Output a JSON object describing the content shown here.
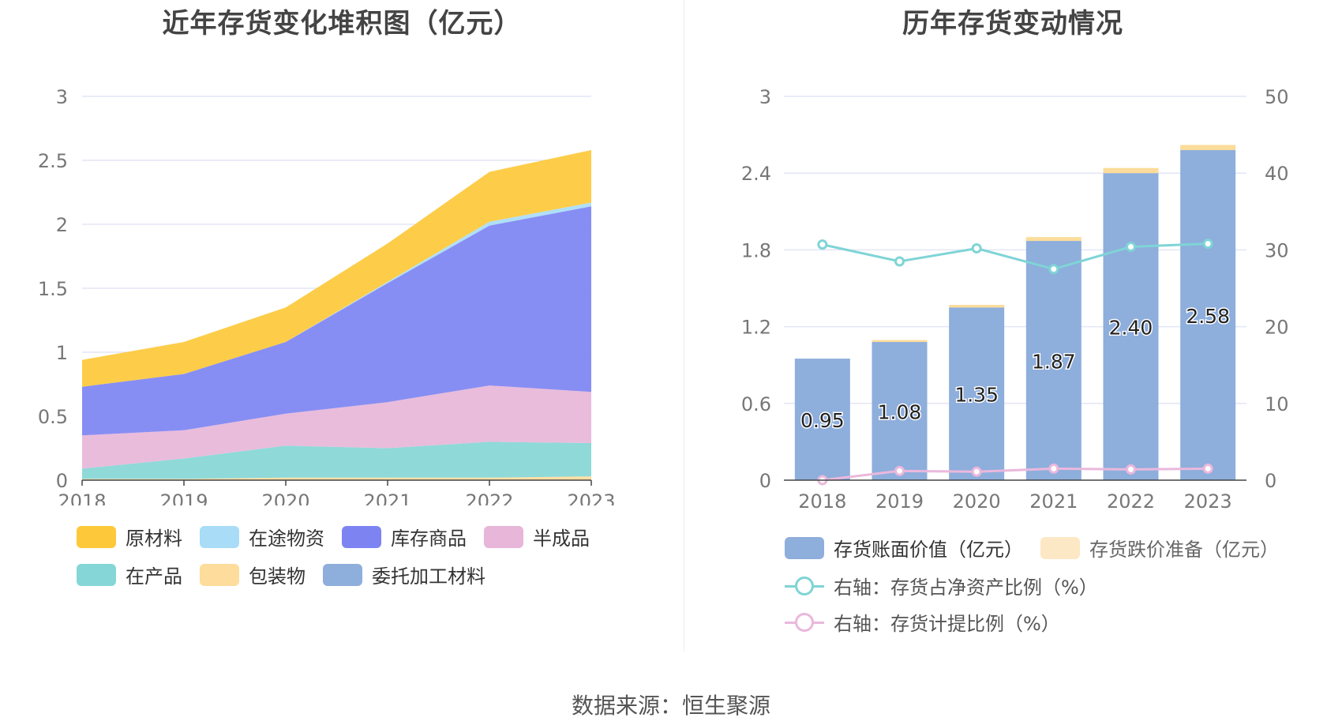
{
  "source_text": "数据来源：恒生聚源",
  "charts": {
    "left_title": "近年存货变化堆积图（亿元）",
    "right_title": "历年存货变动情况"
  },
  "left_legend": [
    {
      "label": "原材料",
      "color": "#fdc93a"
    },
    {
      "label": "在途物资",
      "color": "#a8dcf7"
    },
    {
      "label": "库存商品",
      "color": "#7d84f2"
    },
    {
      "label": "半成品",
      "color": "#e7b6d9"
    },
    {
      "label": "在产品",
      "color": "#85d6d6"
    },
    {
      "label": "包装物",
      "color": "#fddc9c"
    },
    {
      "label": "委托加工材料",
      "color": "#8eaedc"
    }
  ],
  "right_legend": [
    {
      "label": "存货账面价值（亿元）",
      "color": "#8eaedc",
      "kind": "bar"
    },
    {
      "label": "存货跌价准备（亿元）",
      "color": "#fde8c6",
      "kind": "bar"
    },
    {
      "label": "右轴：存货占净资产比例（%）",
      "color": "#7fd4d6",
      "kind": "line"
    },
    {
      "label": "右轴：存货计提比例（%）",
      "color": "#eab8dc",
      "kind": "line"
    }
  ],
  "chart_data": [
    {
      "type": "area",
      "stacked": true,
      "title": "近年存货变化堆积图（亿元）",
      "x": [
        "2018",
        "2019",
        "2020",
        "2021",
        "2022",
        "2023"
      ],
      "ylim": [
        0,
        3
      ],
      "yticks": [
        "0",
        "0.5",
        "1",
        "1.5",
        "2",
        "2.5",
        "3"
      ],
      "grid": true,
      "legend_position": "bottom",
      "series": [
        {
          "name": "包装物",
          "color": "#fddc9c",
          "values": [
            0.01,
            0.01,
            0.02,
            0.02,
            0.02,
            0.03
          ]
        },
        {
          "name": "在产品",
          "color": "#85d6d6",
          "values": [
            0.08,
            0.16,
            0.25,
            0.23,
            0.28,
            0.26
          ]
        },
        {
          "name": "半成品",
          "color": "#e7b6d9",
          "values": [
            0.26,
            0.22,
            0.25,
            0.36,
            0.44,
            0.4
          ]
        },
        {
          "name": "库存商品",
          "color": "#7d84f2",
          "values": [
            0.38,
            0.44,
            0.56,
            0.93,
            1.25,
            1.45
          ]
        },
        {
          "name": "在途物资",
          "color": "#a8dcf7",
          "values": [
            0.0,
            0.0,
            0.0,
            0.01,
            0.03,
            0.03
          ]
        },
        {
          "name": "委托加工材料",
          "color": "#8eaedc",
          "values": [
            0.0,
            0.0,
            0.0,
            0.0,
            0.0,
            0.0
          ]
        },
        {
          "name": "原材料",
          "color": "#fdc93a",
          "values": [
            0.21,
            0.25,
            0.27,
            0.3,
            0.39,
            0.41
          ]
        }
      ]
    },
    {
      "type": "bar",
      "title": "历年存货变动情况",
      "categories": [
        "2018",
        "2019",
        "2020",
        "2021",
        "2022",
        "2023"
      ],
      "ylim": [
        0,
        3
      ],
      "yticks": [
        "0",
        "0.6",
        "1.2",
        "1.8",
        "2.4",
        "3"
      ],
      "y2lim": [
        0,
        50
      ],
      "y2ticks": [
        "0",
        "10",
        "20",
        "30",
        "40",
        "50"
      ],
      "legend_position": "bottom",
      "series": [
        {
          "name": "存货账面价值（亿元）",
          "color": "#8eaedc",
          "values": [
            0.95,
            1.08,
            1.35,
            1.87,
            2.4,
            2.58
          ],
          "labels": [
            "0.95",
            "1.08",
            "1.35",
            "1.87",
            "2.40",
            "2.58"
          ]
        },
        {
          "name": "存货跌价准备（亿元）",
          "color": "#fde8c6",
          "values": [
            0.0,
            0.015,
            0.02,
            0.03,
            0.04,
            0.04
          ]
        },
        {
          "name": "右轴：存货占净资产比例（%）",
          "type": "line",
          "axis": "right",
          "color": "#7fd4d6",
          "values": [
            30.7,
            28.5,
            30.2,
            27.5,
            30.4,
            30.8
          ]
        },
        {
          "name": "右轴：存货计提比例（%）",
          "type": "line",
          "axis": "right",
          "color": "#eab8dc",
          "values": [
            0.0,
            1.2,
            1.1,
            1.5,
            1.4,
            1.5
          ]
        }
      ]
    }
  ]
}
